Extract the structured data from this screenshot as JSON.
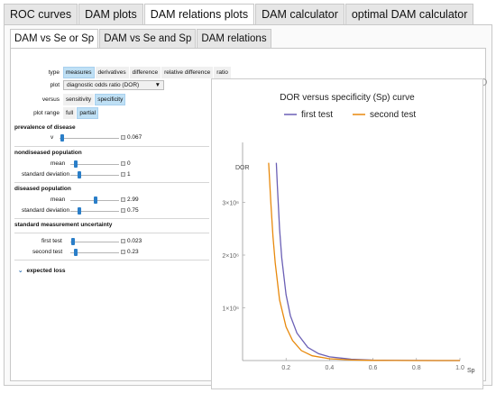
{
  "outer_tabs": [
    "ROC curves",
    "DAM plots",
    "DAM relations plots",
    "DAM calculator",
    "optimal DAM calculator"
  ],
  "outer_active": 2,
  "inner_tabs": [
    "DAM vs Se or Sp",
    "DAM vs Se and Sp",
    "DAM relations"
  ],
  "inner_active": 0,
  "controls": {
    "type_label": "type",
    "type_options": [
      "measures",
      "derivatives",
      "difference",
      "relative difference",
      "ratio"
    ],
    "type_selected": 0,
    "plot_label": "plot",
    "plot_value": "diagnostic odds ratio (DOR)",
    "versus_label": "versus",
    "versus_options": [
      "sensitivity",
      "specificity"
    ],
    "versus_selected": 1,
    "range_label": "plot range",
    "range_options": [
      "full",
      "partial"
    ],
    "range_selected": 1,
    "prevalence_title": "prevalence of disease",
    "v_label": "v",
    "v_value": "0.067",
    "nondiseased_title": "nondiseased population",
    "nd_mean_label": "mean",
    "nd_mean_value": "0",
    "nd_sd_label": "standard deviation",
    "nd_sd_value": "1",
    "diseased_title": "diseased population",
    "d_mean_label": "mean",
    "d_mean_value": "2.99",
    "d_sd_label": "standard deviation",
    "d_sd_value": "0.75",
    "uncertainty_title": "standard measurement uncertainty",
    "first_label": "first test",
    "first_value": "0.023",
    "second_label": "second test",
    "second_value": "0.23",
    "expected_loss": "expected loss"
  },
  "chart_data": {
    "type": "line",
    "title": "DOR versus specificity (Sp) curve",
    "xlabel": "Sp",
    "ylabel": "DOR",
    "xlim": [
      0.0,
      1.0
    ],
    "ylim": [
      0,
      4000000
    ],
    "xticks": [
      "0.2",
      "0.4",
      "0.6",
      "0.8",
      "1.0"
    ],
    "yticks": [
      "1×10⁶",
      "2×10⁶",
      "3×10⁶"
    ],
    "series": [
      {
        "name": "first test",
        "color": "#6a5fb5",
        "x": [
          0.155,
          0.16,
          0.17,
          0.18,
          0.2,
          0.22,
          0.25,
          0.3,
          0.35,
          0.4,
          0.5,
          0.6,
          0.7,
          0.8,
          0.9,
          1.0
        ],
        "y": [
          3750000,
          3300000,
          2500000,
          1950000,
          1250000,
          850000,
          520000,
          250000,
          130000,
          70000,
          25000,
          9000,
          3500,
          1200,
          400,
          100
        ]
      },
      {
        "name": "second test",
        "color": "#e8890c",
        "x": [
          0.12,
          0.13,
          0.14,
          0.15,
          0.17,
          0.2,
          0.23,
          0.27,
          0.32,
          0.4,
          0.5,
          0.6,
          0.7,
          0.8,
          0.9,
          1.0
        ],
        "y": [
          3750000,
          3000000,
          2350000,
          1850000,
          1150000,
          640000,
          380000,
          190000,
          90000,
          35000,
          12000,
          4000,
          1400,
          500,
          150,
          50
        ]
      }
    ]
  }
}
